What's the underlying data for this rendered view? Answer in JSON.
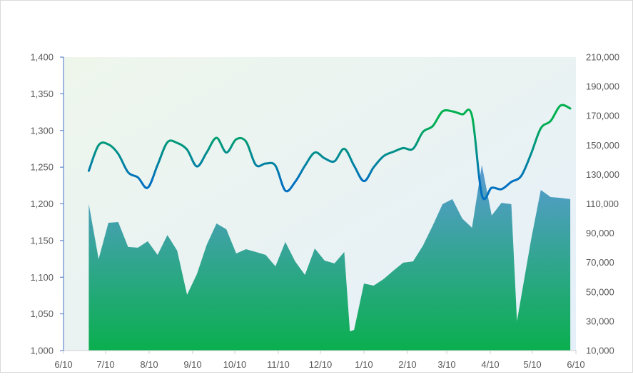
{
  "chart_data": {
    "type": "area+line",
    "title": "",
    "xlabel": "",
    "ylabel_left": "",
    "ylabel_right": "",
    "x_ticks": [
      "6/10",
      "7/10",
      "8/10",
      "9/10",
      "10/10",
      "11/10",
      "12/10",
      "1/10",
      "2/10",
      "3/10",
      "4/10",
      "5/10",
      "6/10"
    ],
    "y_left": {
      "min": 1000,
      "max": 1400,
      "step": 50,
      "ticks": [
        "1,000",
        "1,050",
        "1,100",
        "1,150",
        "1,200",
        "1,250",
        "1,300",
        "1,350",
        "1,400"
      ]
    },
    "y_right": {
      "min": 10000,
      "max": 210000,
      "step": 20000,
      "ticks": [
        "10,000",
        "30,000",
        "50,000",
        "70,000",
        "90,000",
        "110,000",
        "130,000",
        "150,000",
        "170,000",
        "190,000",
        "210,000"
      ]
    },
    "grid": false,
    "legend": "none",
    "series": [
      {
        "type": "area",
        "axis": "right",
        "x": [
          "6/28",
          "7/5",
          "7/12",
          "7/19",
          "7/26",
          "8/2",
          "8/9",
          "8/16",
          "8/23",
          "8/30",
          "9/6",
          "9/13",
          "9/20",
          "9/27",
          "10/4",
          "10/11",
          "10/18",
          "10/25",
          "11/1",
          "11/8",
          "11/15",
          "11/22",
          "11/29",
          "12/6",
          "12/13",
          "12/20",
          "12/27",
          "12/31",
          "1/3",
          "1/10",
          "1/17",
          "1/24",
          "1/31",
          "2/7",
          "2/14",
          "2/21",
          "2/28",
          "3/7",
          "3/14",
          "3/21",
          "3/28",
          "4/4",
          "4/11",
          "4/18",
          "4/25",
          "4/29",
          "5/9",
          "5/16",
          "5/23",
          "5/30",
          "6/6"
        ],
        "values": [
          110000,
          72300,
          97100,
          97600,
          80600,
          80100,
          84500,
          75200,
          88800,
          78100,
          48000,
          62100,
          82000,
          96600,
          92700,
          76200,
          79100,
          77200,
          75200,
          67400,
          84000,
          70800,
          61600,
          79600,
          71300,
          69400,
          77200,
          23100,
          24100,
          55700,
          54300,
          58700,
          64500,
          69900,
          70800,
          81500,
          95200,
          109800,
          113200,
          100000,
          93700,
          136500,
          102000,
          110700,
          109800,
          30000,
          85400,
          119500,
          114600,
          114100,
          113200
        ],
        "colors": {
          "top": "#5b9bd5",
          "bottom": "#0aaf4e"
        }
      },
      {
        "type": "line",
        "axis": "left",
        "smooth": true,
        "x": [
          "6/28",
          "7/5",
          "7/12",
          "7/19",
          "7/26",
          "8/2",
          "8/9",
          "8/16",
          "8/23",
          "8/30",
          "9/6",
          "9/13",
          "9/20",
          "9/27",
          "10/4",
          "10/11",
          "10/18",
          "10/25",
          "11/1",
          "11/8",
          "11/15",
          "11/22",
          "11/29",
          "12/6",
          "12/13",
          "12/20",
          "12/27",
          "1/3",
          "1/10",
          "1/17",
          "1/24",
          "1/31",
          "2/7",
          "2/14",
          "2/21",
          "2/28",
          "3/7",
          "3/14",
          "3/21",
          "3/28",
          "4/4",
          "4/11",
          "4/18",
          "4/25",
          "5/2",
          "5/9",
          "5/16",
          "5/23",
          "5/30",
          "6/6"
        ],
        "values": [
          1245,
          1280,
          1281,
          1268,
          1243,
          1236,
          1222,
          1253,
          1284,
          1283,
          1274,
          1251,
          1270,
          1290,
          1270,
          1288,
          1285,
          1253,
          1255,
          1252,
          1218,
          1230,
          1252,
          1270,
          1262,
          1258,
          1275,
          1252,
          1231,
          1250,
          1265,
          1271,
          1276,
          1275,
          1298,
          1306,
          1326,
          1326,
          1322,
          1320,
          1212,
          1222,
          1220,
          1230,
          1238,
          1268,
          1303,
          1313,
          1334,
          1330
        ],
        "colors": {
          "high": "#00b050",
          "low": "#0070c0"
        }
      }
    ],
    "colors": {
      "plot_bg_start": "#eef6ec",
      "plot_bg_end": "#e5eff9",
      "left_axis": "#4472c4",
      "x_axis": "#d0d0d0"
    }
  }
}
